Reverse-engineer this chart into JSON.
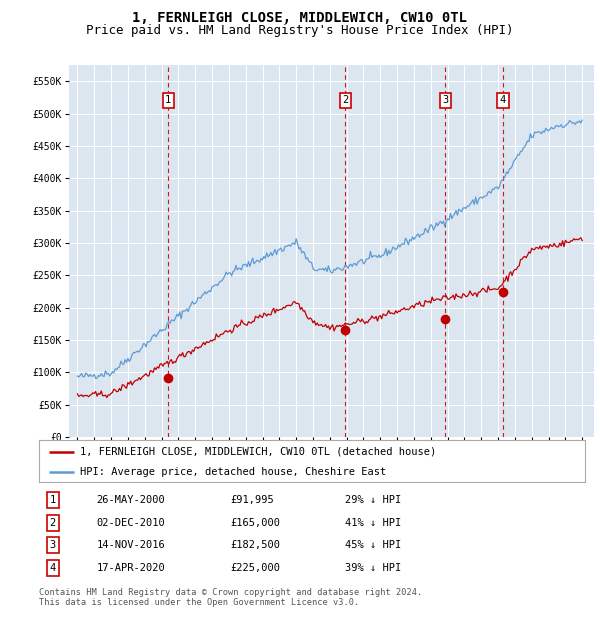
{
  "title": "1, FERNLEIGH CLOSE, MIDDLEWICH, CW10 0TL",
  "subtitle": "Price paid vs. HM Land Registry's House Price Index (HPI)",
  "ylim": [
    0,
    575000
  ],
  "yticks": [
    0,
    50000,
    100000,
    150000,
    200000,
    250000,
    300000,
    350000,
    400000,
    450000,
    500000,
    550000
  ],
  "ytick_labels": [
    "£0",
    "£50K",
    "£100K",
    "£150K",
    "£200K",
    "£250K",
    "£300K",
    "£350K",
    "£400K",
    "£450K",
    "£500K",
    "£550K"
  ],
  "plot_bg_color": "#dce6f1",
  "hpi_color": "#5b9bd5",
  "price_color": "#c00000",
  "vline_color": "#cc0000",
  "sale_dates": [
    2000.4,
    2010.92,
    2016.87,
    2020.29
  ],
  "sale_prices": [
    91995,
    165000,
    182500,
    225000
  ],
  "sale_labels": [
    "1",
    "2",
    "3",
    "4"
  ],
  "legend_price_label": "1, FERNLEIGH CLOSE, MIDDLEWICH, CW10 0TL (detached house)",
  "legend_hpi_label": "HPI: Average price, detached house, Cheshire East",
  "table_rows": [
    [
      "1",
      "26-MAY-2000",
      "£91,995",
      "29% ↓ HPI"
    ],
    [
      "2",
      "02-DEC-2010",
      "£165,000",
      "41% ↓ HPI"
    ],
    [
      "3",
      "14-NOV-2016",
      "£182,500",
      "45% ↓ HPI"
    ],
    [
      "4",
      "17-APR-2020",
      "£225,000",
      "39% ↓ HPI"
    ]
  ],
  "footnote": "Contains HM Land Registry data © Crown copyright and database right 2024.\nThis data is licensed under the Open Government Licence v3.0.",
  "title_fontsize": 10,
  "subtitle_fontsize": 9
}
